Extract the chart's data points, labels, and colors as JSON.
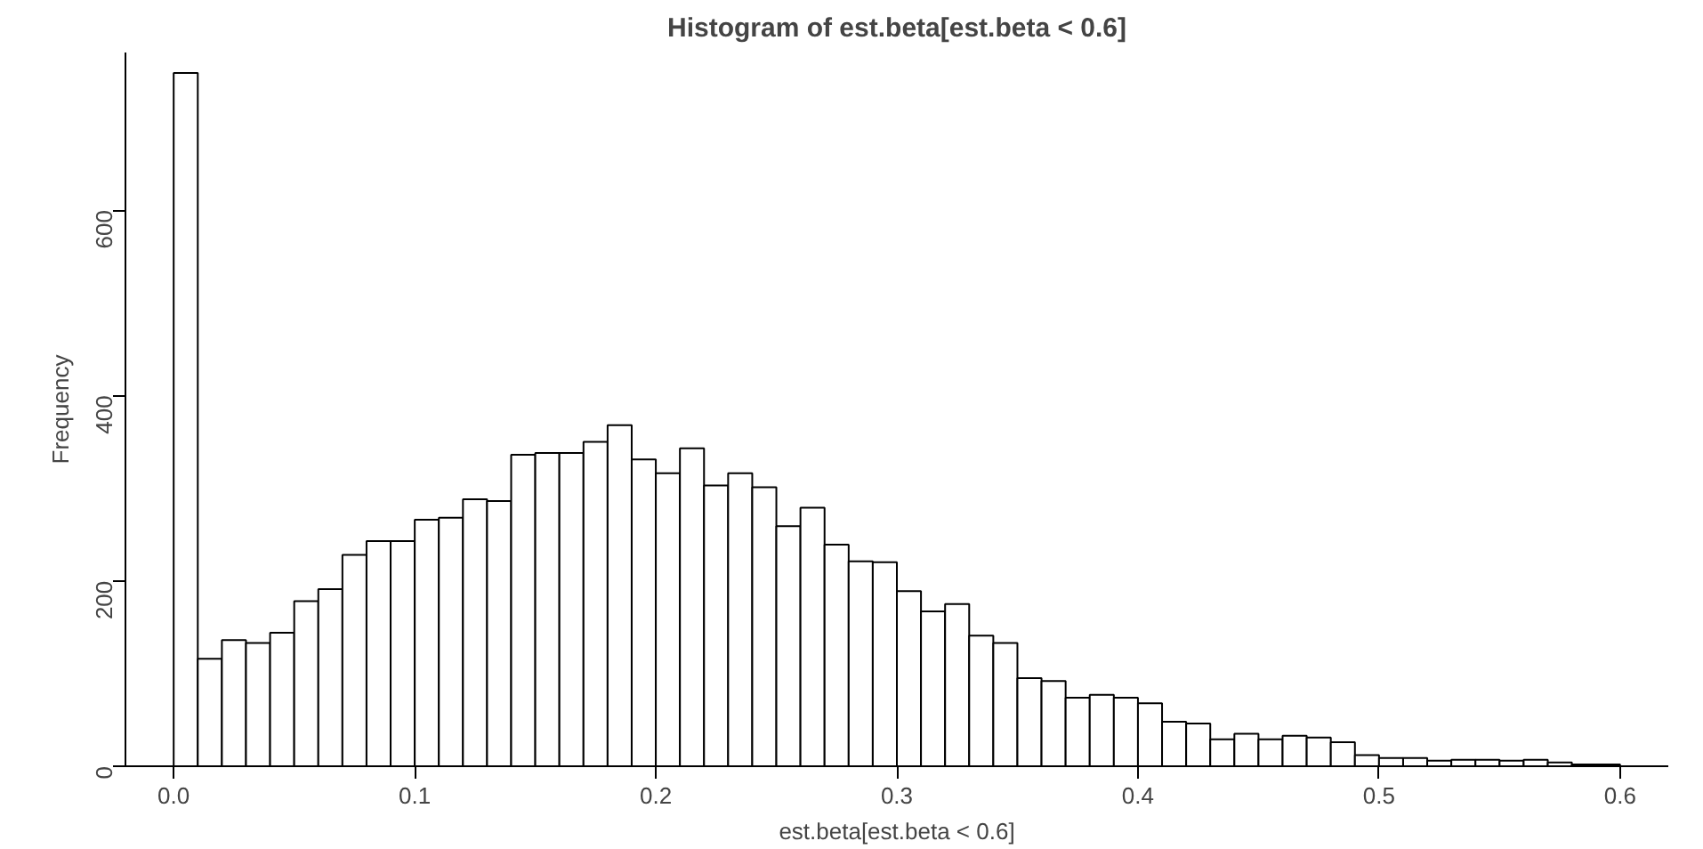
{
  "chart_data": {
    "type": "histogram",
    "title": "Histogram of est.beta[est.beta < 0.6]",
    "xlabel": "est.beta[est.beta < 0.6]",
    "ylabel": "Frequency",
    "bins": [
      0,
      0.01,
      0.02,
      0.03,
      0.04,
      0.05,
      0.06,
      0.07,
      0.08,
      0.09,
      0.1,
      0.11,
      0.12,
      0.13,
      0.14,
      0.15,
      0.16,
      0.17,
      0.18,
      0.19,
      0.2,
      0.21,
      0.22,
      0.23,
      0.24,
      0.25,
      0.26,
      0.27,
      0.28,
      0.29,
      0.3,
      0.31,
      0.32,
      0.33,
      0.34,
      0.35,
      0.36,
      0.37,
      0.38,
      0.39,
      0.4,
      0.41,
      0.42,
      0.43,
      0.44,
      0.45,
      0.46,
      0.47,
      0.48,
      0.49,
      0.5,
      0.51,
      0.52,
      0.53,
      0.54,
      0.55,
      0.56,
      0.57,
      0.58,
      0.59,
      0.6
    ],
    "values": [
      748,
      116,
      136,
      133,
      144,
      178,
      191,
      228,
      243,
      243,
      266,
      268,
      288,
      286,
      336,
      338,
      338,
      350,
      368,
      331,
      316,
      343,
      303,
      316,
      301,
      259,
      279,
      239,
      221,
      220,
      189,
      167,
      175,
      141,
      133,
      95,
      92,
      74,
      77,
      74,
      68,
      48,
      46,
      29,
      35,
      29,
      33,
      31,
      26,
      12,
      9,
      9,
      6,
      7,
      7,
      6,
      7,
      4,
      2,
      2
    ],
    "color": "#ffffff",
    "xlim": [
      -0.02,
      0.62
    ],
    "ylim": [
      0,
      770
    ],
    "xticks": [
      {
        "value": 0,
        "label": "0.0"
      },
      0.1,
      0.2,
      0.3,
      0.4,
      0.5,
      0.6
    ],
    "yticks": [
      0,
      200,
      400,
      600
    ],
    "grid": false
  }
}
